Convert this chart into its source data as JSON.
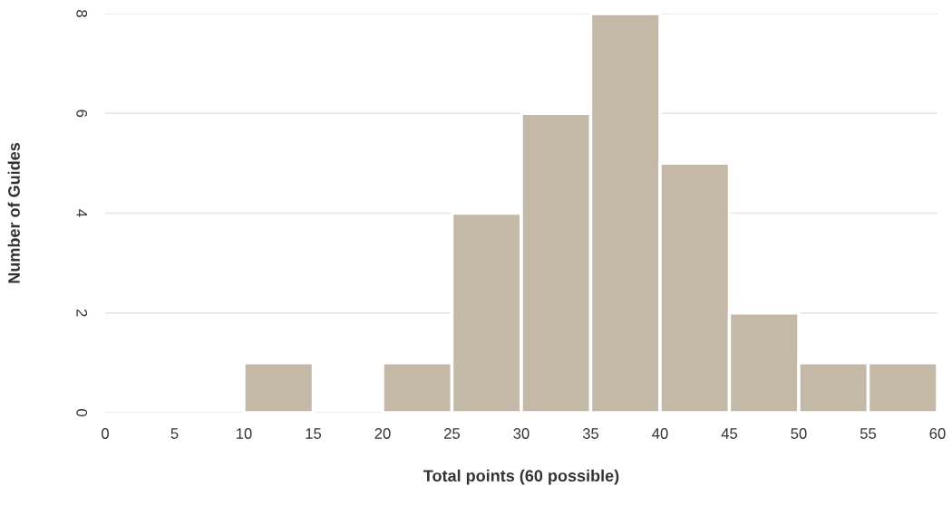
{
  "chart_data": {
    "type": "histogram",
    "xlabel": "Total points (60 possible)",
    "ylabel": "Number of Guides",
    "bins": [
      0,
      5,
      10,
      15,
      20,
      25,
      30,
      35,
      40,
      45,
      50,
      55,
      60
    ],
    "values": [
      0,
      0,
      1,
      0,
      1,
      4,
      6,
      8,
      5,
      2,
      1,
      1
    ],
    "color": "#c4b9a6",
    "xlim": [
      0,
      60
    ],
    "xticks": [
      0,
      5,
      10,
      15,
      20,
      25,
      30,
      35,
      40,
      45,
      50,
      55,
      60
    ],
    "ylim": [
      0,
      8
    ],
    "yticks": [
      0,
      2,
      4,
      6,
      8
    ],
    "grid": "y"
  }
}
